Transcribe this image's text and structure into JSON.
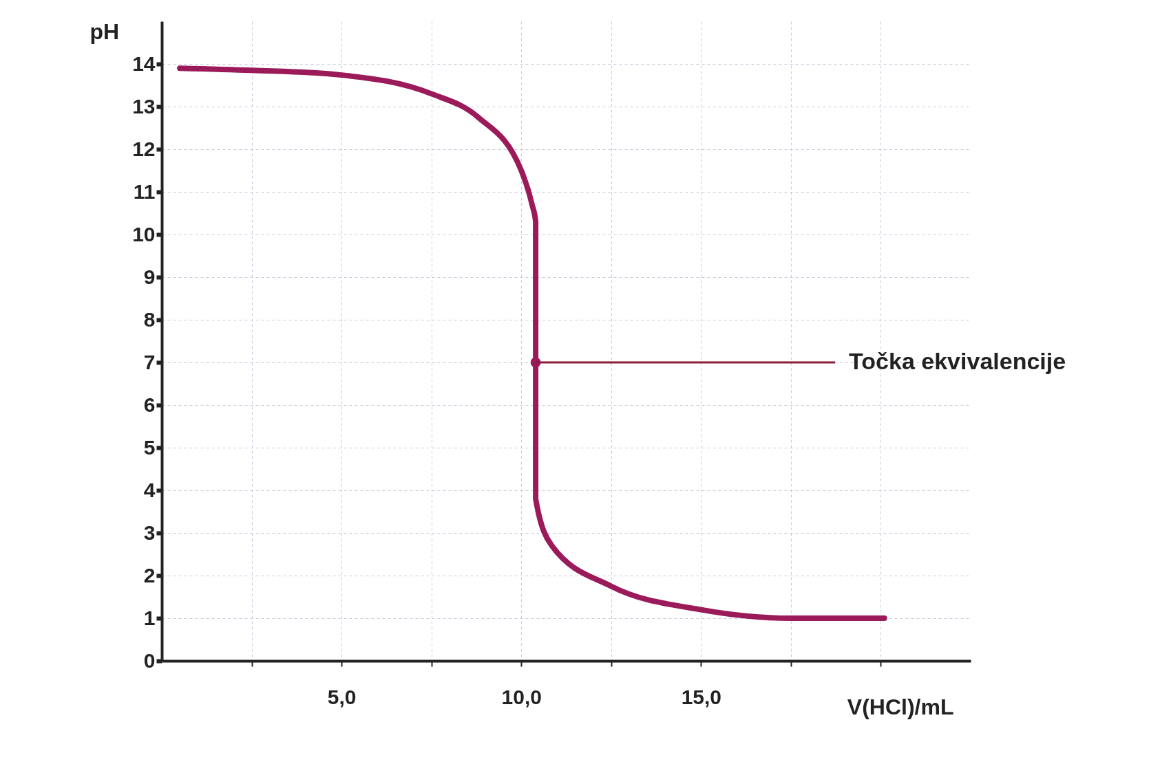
{
  "chart_data": {
    "type": "line",
    "xlabel": "V(HCl)/mL",
    "ylabel": "pH",
    "x": [
      0.5,
      2.5,
      5,
      7.5,
      8.8,
      10,
      10.3,
      10.4,
      10.4,
      10.4,
      10.85,
      12.5,
      15,
      17.5,
      20.1
    ],
    "series": [
      {
        "color": "#9b1b5a",
        "values": [
          13.9,
          13.85,
          13.74,
          13.3,
          12.75,
          11.5,
          10.7,
          10.3,
          7,
          3.8,
          2.7,
          1.75,
          1.2,
          1.0,
          1.0
        ]
      }
    ],
    "xlim": [
      0,
      22.5
    ],
    "ylim": [
      0,
      15
    ],
    "xticks": [
      {
        "value": 2.5,
        "label": null
      },
      {
        "value": 5,
        "label": "5,0"
      },
      {
        "value": 7.5,
        "label": null
      },
      {
        "value": 10,
        "label": "10,0"
      },
      {
        "value": 12.5,
        "label": null
      },
      {
        "value": 15,
        "label": "15,0"
      },
      {
        "value": 17.5,
        "label": null
      },
      {
        "value": 20,
        "label": null
      }
    ],
    "yticks": [
      0,
      1,
      2,
      3,
      4,
      5,
      6,
      7,
      8,
      9,
      10,
      11,
      12,
      13,
      14
    ],
    "grid": true,
    "marker": "none",
    "line_style": "solid",
    "annotations": [
      {
        "text": "Točka ekvivalencije",
        "x": 10.4,
        "y": 7
      }
    ]
  }
}
